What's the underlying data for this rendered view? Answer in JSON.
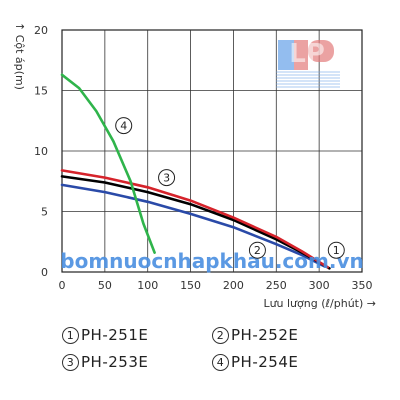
{
  "chart_data": {
    "type": "line",
    "ylabel": "Cột áp(m)",
    "ylabel_prefix": "↑",
    "xlabel": "Lưu lượng  (ℓ/phút) →",
    "xlim": [
      0,
      350
    ],
    "ylim": [
      0,
      20
    ],
    "xticks": [
      0,
      50,
      100,
      150,
      200,
      250,
      300,
      350
    ],
    "yticks": [
      0,
      5,
      10,
      15,
      20
    ],
    "grid": true,
    "series": [
      {
        "name": "PH-251E",
        "label": "1",
        "color": "#000000",
        "x": [
          0,
          50,
          100,
          150,
          200,
          250,
          280,
          300,
          312
        ],
        "y": [
          7.9,
          7.4,
          6.6,
          5.6,
          4.3,
          2.7,
          1.6,
          0.8,
          0.3
        ]
      },
      {
        "name": "PH-252E",
        "label": "2",
        "color": "#2a4aa8",
        "x": [
          0,
          50,
          100,
          150,
          200,
          250,
          280,
          305
        ],
        "y": [
          7.2,
          6.6,
          5.8,
          4.8,
          3.7,
          2.3,
          1.4,
          0.5
        ]
      },
      {
        "name": "PH-253E",
        "label": "3",
        "color": "#d6232b",
        "x": [
          0,
          50,
          100,
          150,
          200,
          250,
          280,
          310
        ],
        "y": [
          8.4,
          7.8,
          7.0,
          5.9,
          4.5,
          2.9,
          1.7,
          0.4
        ]
      },
      {
        "name": "PH-254E",
        "label": "4",
        "color": "#2fb44b",
        "x": [
          0,
          20,
          40,
          60,
          80,
          95,
          108
        ],
        "y": [
          16.3,
          15.2,
          13.3,
          10.8,
          7.5,
          4.0,
          1.6
        ]
      }
    ],
    "curve_labels": [
      {
        "label": "1",
        "x": 320,
        "y": 1.8
      },
      {
        "label": "2",
        "x": 228,
        "y": 1.8
      },
      {
        "label": "3",
        "x": 122,
        "y": 7.8
      },
      {
        "label": "4",
        "x": 72,
        "y": 12.1
      }
    ]
  },
  "watermark": {
    "text": "bomnuocnhapkhau.com.vn",
    "logo_letters": "LP",
    "color": "#4a8fe0"
  },
  "legend": [
    {
      "num": "1",
      "model": "PH-251E"
    },
    {
      "num": "2",
      "model": "PH-252E"
    },
    {
      "num": "3",
      "model": "PH-253E"
    },
    {
      "num": "4",
      "model": "PH-254E"
    }
  ]
}
